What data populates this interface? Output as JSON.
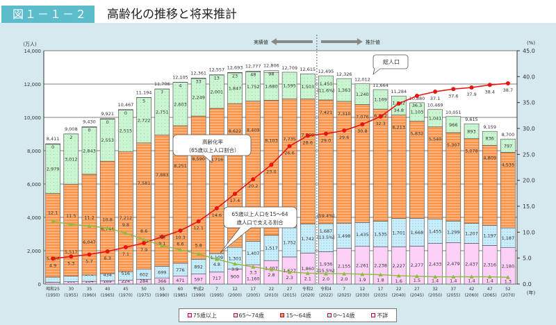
{
  "header": {
    "figure_no": "図１－１－２",
    "title": "高齢化の推移と将来推計"
  },
  "colors": {
    "age75plus": "#fdd0f8",
    "age65_74": "#c9edfb",
    "age15_64": "#f8944a",
    "age0_14": "#c9f6d0",
    "unknown": "#ffffff",
    "aging_rate": "#e8140f",
    "support_ratio": "#8bbb3a"
  },
  "chart_data": {
    "type": "bar",
    "stacked": true,
    "title": "高齢化の推移と将来推計",
    "ylabel": "(万人)",
    "y2label": "(%)",
    "xlabel": "(年)",
    "ylim": [
      0,
      14000
    ],
    "y2lim": [
      0,
      45
    ],
    "yticks": [
      "0",
      "2,000",
      "4,000",
      "6,000",
      "8,000",
      "10,000",
      "12,000",
      "14,000"
    ],
    "y2ticks": [
      "0.0",
      "5.0",
      "10.0",
      "15.0",
      "20.0",
      "25.0",
      "30.0",
      "35.0",
      "40.0",
      "45.0"
    ],
    "era_labels": [
      "昭和25",
      "30",
      "35",
      "40",
      "45",
      "50",
      "55",
      "60",
      "平成2",
      "7",
      "12",
      "17",
      "22",
      "27",
      "令和2",
      "令和4",
      "7",
      "12",
      "17",
      "22",
      "27",
      "32",
      "37",
      "42",
      "47",
      "52"
    ],
    "year_labels": [
      "(1950)",
      "(1955)",
      "(1960)",
      "(1965)",
      "(1970)",
      "(1975)",
      "(1980)",
      "(1985)",
      "(1990)",
      "(1995)",
      "(2000)",
      "(2005)",
      "(2010)",
      "(2015)",
      "(2020)",
      "(2022)",
      "(2025)",
      "(2030)",
      "(2035)",
      "(2040)",
      "(2045)",
      "(2050)",
      "(2055)",
      "(2060)",
      "(2065)",
      "(2070)"
    ],
    "totals": [
      8411,
      9008,
      9430,
      9921,
      10467,
      11194,
      11706,
      12105,
      12361,
      12557,
      12693,
      12777,
      12806,
      12709,
      12615,
      12495,
      12326,
      12012,
      11664,
      11284,
      10880,
      10469,
      10051,
      9615,
      9159,
      8700
    ],
    "series": [
      {
        "name": "75歳以上",
        "key": "age75plus",
        "values": [
          107,
          139,
          164,
          189,
          224,
          284,
          366,
          471,
          597,
          717,
          900,
          1160,
          1407,
          1627,
          1860,
          1936,
          2155,
          2261,
          2238,
          2227,
          2277,
          2433,
          2479,
          2437,
          2316,
          2180
        ]
      },
      {
        "name": "65～74歳",
        "key": "age65_74",
        "values": [
          309,
          338,
          376,
          434,
          516,
          602,
          699,
          776,
          892,
          1109,
          1301,
          1407,
          1517,
          1752,
          1742,
          1687,
          1498,
          1435,
          1535,
          1701,
          1668,
          1455,
          1299,
          1207,
          1197,
          1187
        ]
      },
      {
        "name": "15～64歳",
        "key": "age15_64",
        "values": [
          5017,
          5517,
          6047,
          6744,
          7212,
          7581,
          7883,
          8251,
          8590,
          8716,
          8622,
          8409,
          8103,
          7735,
          7509,
          7421,
          7310,
          7076,
          6722,
          6213,
          5832,
          5540,
          5307,
          5078,
          4809,
          4535
        ]
      },
      {
        "name": "0～14歳",
        "key": "age0_14",
        "values": [
          2979,
          3012,
          2843,
          2553,
          2515,
          2722,
          2751,
          2603,
          2249,
          2001,
          1847,
          1752,
          1680,
          1595,
          1503,
          1450,
          1363,
          1240,
          1169,
          1142,
          1103,
          1041,
          966,
          893,
          836,
          797
        ]
      },
      {
        "name": "不詳",
        "key": "unknown",
        "values": [
          0,
          2,
          0,
          0,
          0,
          5,
          7,
          4,
          33,
          13,
          23,
          48,
          98,
          null,
          null,
          null,
          null,
          null,
          null,
          null,
          null,
          null,
          null,
          null,
          null,
          null
        ]
      }
    ],
    "lines": [
      {
        "name": "高齢化率（65歳以上人口割合）",
        "key": "aging_rate",
        "axis": "right",
        "values": [
          4.9,
          5.3,
          5.7,
          6.3,
          7.1,
          7.9,
          9.1,
          10.3,
          12.1,
          14.6,
          17.4,
          20.2,
          23.0,
          26.6,
          28.6,
          29.0,
          29.6,
          30.8,
          32.3,
          34.8,
          36.3,
          37.1,
          37.6,
          37.9,
          38.4,
          38.7
        ]
      },
      {
        "name": "65歳以上人口を15～64歳人口で支える割合",
        "key": "support_ratio",
        "axis": "right",
        "values": [
          12.1,
          11.5,
          11.2,
          10.8,
          9.8,
          8.6,
          7.4,
          6.6,
          5.8,
          4.8,
          3.9,
          3.3,
          2.8,
          2.3,
          2.1,
          2.0,
          2.0,
          1.9,
          1.8,
          1.6,
          1.5,
          1.4,
          1.4,
          1.4,
          1.4,
          1.3
        ]
      }
    ],
    "annotations_2022": {
      "age0_14": "(11.6%)",
      "age15_64": "(59.4%)",
      "age65_74": "(13.5%)",
      "age75plus": "(15.5%)"
    },
    "period_labels": {
      "actual": "実績値",
      "projected": "推計値"
    },
    "callouts": {
      "total": "総人口",
      "aging_rate_1": "高齢化率",
      "aging_rate_2": "（65歳以上人口割合）",
      "support_1": "65歳以上人口を15～64",
      "support_2": "歳人口で支える割合"
    },
    "legend": [
      "75歳以上",
      "65～74歳",
      "15～64歳",
      "0～14歳",
      "不詳"
    ],
    "legend_placement": "bottom"
  }
}
